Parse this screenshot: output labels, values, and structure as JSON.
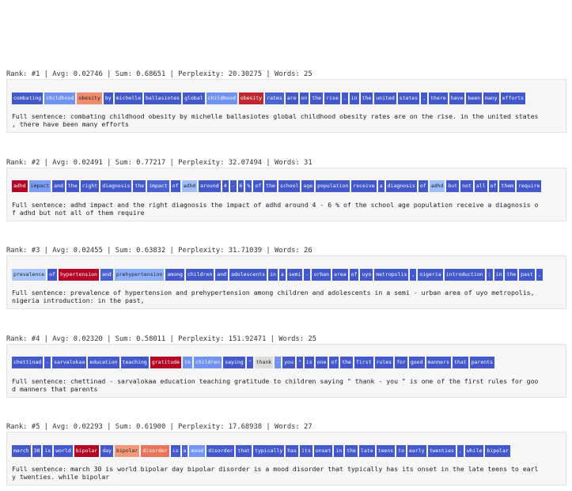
{
  "entries": [
    {
      "header": "Rank: #1 | Avg: 0.02746 | Sum: 0.68651 | Perplexity: 20.30275 | Words: 25",
      "tokens": [
        {
          "text": "combating",
          "color": "#4358cb"
        },
        {
          "text": "childhood",
          "color": "#6f92f3"
        },
        {
          "text": "obesity",
          "color": "#f08b6e"
        },
        {
          "text": "by",
          "color": "#4358cb"
        },
        {
          "text": "michelle",
          "color": "#4358cb"
        },
        {
          "text": "ballasiotes",
          "color": "#4358cb"
        },
        {
          "text": "global",
          "color": "#4358cb"
        },
        {
          "text": "childhood",
          "color": "#6f92f3"
        },
        {
          "text": "obesity",
          "color": "#c0282f"
        },
        {
          "text": "rates",
          "color": "#4a63d3"
        },
        {
          "text": "are",
          "color": "#4358cb"
        },
        {
          "text": "on",
          "color": "#4358cb"
        },
        {
          "text": "the",
          "color": "#4358cb"
        },
        {
          "text": "rise",
          "color": "#4358cb"
        },
        {
          "text": ".",
          "color": "#4358cb"
        },
        {
          "text": "in",
          "color": "#4358cb"
        },
        {
          "text": "the",
          "color": "#4358cb"
        },
        {
          "text": "united",
          "color": "#4358cb"
        },
        {
          "text": "states",
          "color": "#4358cb"
        },
        {
          "text": ",",
          "color": "#4358cb"
        },
        {
          "text": "there",
          "color": "#4358cb"
        },
        {
          "text": "have",
          "color": "#4358cb"
        },
        {
          "text": "been",
          "color": "#4358cb"
        },
        {
          "text": "many",
          "color": "#4358cb"
        },
        {
          "text": "efforts",
          "color": "#4358cb"
        }
      ],
      "sentence": [
        "Full sentence: combating childhood obesity by michelle ballasiotes global childhood obesity rates are on the rise. in the united states",
        ", there have been many efforts"
      ]
    },
    {
      "header": "Rank: #2 | Avg: 0.02491 | Sum: 0.77217 | Perplexity: 32.07494 | Words: 31",
      "tokens": [
        {
          "text": "adhd",
          "color": "#b40426"
        },
        {
          "text": "impact",
          "color": "#7b9ff9"
        },
        {
          "text": "and",
          "color": "#4358cb"
        },
        {
          "text": "the",
          "color": "#4358cb"
        },
        {
          "text": "right",
          "color": "#4358cb"
        },
        {
          "text": "diagnosis",
          "color": "#4358cb"
        },
        {
          "text": "the",
          "color": "#4358cb"
        },
        {
          "text": "impact",
          "color": "#4a63d3"
        },
        {
          "text": "of",
          "color": "#4358cb"
        },
        {
          "text": "adhd",
          "color": "#9ebeff"
        },
        {
          "text": "around",
          "color": "#4358cb"
        },
        {
          "text": "4",
          "color": "#4358cb"
        },
        {
          "text": "-",
          "color": "#4358cb"
        },
        {
          "text": "6",
          "color": "#4358cb"
        },
        {
          "text": "%",
          "color": "#4358cb"
        },
        {
          "text": "of",
          "color": "#4358cb"
        },
        {
          "text": "the",
          "color": "#4358cb"
        },
        {
          "text": "school",
          "color": "#4358cb"
        },
        {
          "text": "age",
          "color": "#4358cb"
        },
        {
          "text": "population",
          "color": "#4358cb"
        },
        {
          "text": "receive",
          "color": "#4358cb"
        },
        {
          "text": "a",
          "color": "#4358cb"
        },
        {
          "text": "diagnosis",
          "color": "#4358cb"
        },
        {
          "text": "of",
          "color": "#4358cb"
        },
        {
          "text": "adhd",
          "color": "#9ebeff"
        },
        {
          "text": "but",
          "color": "#4358cb"
        },
        {
          "text": "not",
          "color": "#4358cb"
        },
        {
          "text": "all",
          "color": "#4358cb"
        },
        {
          "text": "of",
          "color": "#4358cb"
        },
        {
          "text": "them",
          "color": "#4358cb"
        },
        {
          "text": "require",
          "color": "#4358cb"
        }
      ],
      "sentence": [
        "Full sentence: adhd impact and the right diagnosis the impact of adhd around 4 - 6 % of the school age population receive a diagnosis o",
        "f adhd but not all of them require"
      ]
    },
    {
      "header": "Rank: #3 | Avg: 0.02455 | Sum: 0.63832 | Perplexity: 31.71039 | Words: 26",
      "tokens": [
        {
          "text": "prevalence",
          "color": "#aac7fd"
        },
        {
          "text": "of",
          "color": "#4358cb"
        },
        {
          "text": "hypertension",
          "color": "#b40426"
        },
        {
          "text": "and",
          "color": "#4a63d3"
        },
        {
          "text": "prehypertension",
          "color": "#8db0fe"
        },
        {
          "text": "among",
          "color": "#4358cb"
        },
        {
          "text": "children",
          "color": "#4358cb"
        },
        {
          "text": "and",
          "color": "#4358cb"
        },
        {
          "text": "adolescents",
          "color": "#4358cb"
        },
        {
          "text": "in",
          "color": "#4358cb"
        },
        {
          "text": "a",
          "color": "#4358cb"
        },
        {
          "text": "semi",
          "color": "#4358cb"
        },
        {
          "text": "-",
          "color": "#4358cb"
        },
        {
          "text": "urban",
          "color": "#4358cb"
        },
        {
          "text": "area",
          "color": "#4358cb"
        },
        {
          "text": "of",
          "color": "#4358cb"
        },
        {
          "text": "uyo",
          "color": "#4358cb"
        },
        {
          "text": "metropolis",
          "color": "#4358cb"
        },
        {
          "text": ",",
          "color": "#4358cb"
        },
        {
          "text": "nigeria",
          "color": "#4358cb"
        },
        {
          "text": "introduction",
          "color": "#4358cb"
        },
        {
          "text": ":",
          "color": "#4358cb"
        },
        {
          "text": "in",
          "color": "#4358cb"
        },
        {
          "text": "the",
          "color": "#4358cb"
        },
        {
          "text": "past",
          "color": "#4358cb"
        },
        {
          "text": ",",
          "color": "#4358cb"
        }
      ],
      "sentence": [
        "Full sentence: prevalence of hypertension and prehypertension among children and adolescents in a semi - urban area of uyo metropolis,",
        "nigeria introduction: in the past,"
      ]
    },
    {
      "header": "Rank: #4 | Avg: 0.02320 | Sum: 0.58011 | Perplexity: 151.92471 | Words: 25",
      "tokens": [
        {
          "text": "chettinad",
          "color": "#4358cb"
        },
        {
          "text": "-",
          "color": "#4358cb"
        },
        {
          "text": "sarvalokaa",
          "color": "#4358cb"
        },
        {
          "text": "education",
          "color": "#4358cb"
        },
        {
          "text": "teaching",
          "color": "#4358cb"
        },
        {
          "text": "gratitude",
          "color": "#b40426"
        },
        {
          "text": "to",
          "color": "#6f92f3"
        },
        {
          "text": "children",
          "color": "#6f92f3"
        },
        {
          "text": "saying",
          "color": "#4358cb"
        },
        {
          "text": "\"",
          "color": "#4358cb"
        },
        {
          "text": "thank",
          "color": "#dcdddd"
        },
        {
          "text": "-",
          "color": "#6f92f3"
        },
        {
          "text": "you",
          "color": "#4358cb"
        },
        {
          "text": "\"",
          "color": "#4358cb"
        },
        {
          "text": "is",
          "color": "#4358cb"
        },
        {
          "text": "one",
          "color": "#4358cb"
        },
        {
          "text": "of",
          "color": "#4358cb"
        },
        {
          "text": "the",
          "color": "#4358cb"
        },
        {
          "text": "first",
          "color": "#4358cb"
        },
        {
          "text": "rules",
          "color": "#4358cb"
        },
        {
          "text": "for",
          "color": "#4358cb"
        },
        {
          "text": "good",
          "color": "#4358cb"
        },
        {
          "text": "manners",
          "color": "#4358cb"
        },
        {
          "text": "that",
          "color": "#4358cb"
        },
        {
          "text": "parents",
          "color": "#4358cb"
        }
      ],
      "sentence": [
        "Full sentence: chettinad - sarvalokaa education teaching gratitude to children saying \" thank - you \" is one of the first rules for goo",
        "d manners that parents"
      ]
    },
    {
      "header": "Rank: #5 | Avg: 0.02293 | Sum: 0.61900 | Perplexity: 17.68938 | Words: 27",
      "tokens": [
        {
          "text": "march",
          "color": "#4358cb"
        },
        {
          "text": "30",
          "color": "#4358cb"
        },
        {
          "text": "is",
          "color": "#4358cb"
        },
        {
          "text": "world",
          "color": "#4358cb"
        },
        {
          "text": "bipolar",
          "color": "#b40426"
        },
        {
          "text": "day",
          "color": "#4358cb"
        },
        {
          "text": "bipolar",
          "color": "#f4987a"
        },
        {
          "text": "disorder",
          "color": "#e7745b"
        },
        {
          "text": "is",
          "color": "#4358cb"
        },
        {
          "text": "a",
          "color": "#4a63d3"
        },
        {
          "text": "mood",
          "color": "#7396f5"
        },
        {
          "text": "disorder",
          "color": "#4358cb"
        },
        {
          "text": "that",
          "color": "#4358cb"
        },
        {
          "text": "typically",
          "color": "#4358cb"
        },
        {
          "text": "has",
          "color": "#4358cb"
        },
        {
          "text": "its",
          "color": "#4358cb"
        },
        {
          "text": "onset",
          "color": "#4358cb"
        },
        {
          "text": "in",
          "color": "#4358cb"
        },
        {
          "text": "the",
          "color": "#4358cb"
        },
        {
          "text": "late",
          "color": "#4358cb"
        },
        {
          "text": "teens",
          "color": "#4358cb"
        },
        {
          "text": "to",
          "color": "#4358cb"
        },
        {
          "text": "early",
          "color": "#4358cb"
        },
        {
          "text": "twenties",
          "color": "#4358cb"
        },
        {
          "text": ",",
          "color": "#4358cb"
        },
        {
          "text": "while",
          "color": "#4358cb"
        },
        {
          "text": "bipolar",
          "color": "#4358cb"
        }
      ],
      "sentence": [
        "Full sentence: march 30 is world bipolar day bipolar disorder is a mood disorder that typically has its onset in the late teens to earl",
        "y twenties. while bipolar"
      ]
    }
  ]
}
